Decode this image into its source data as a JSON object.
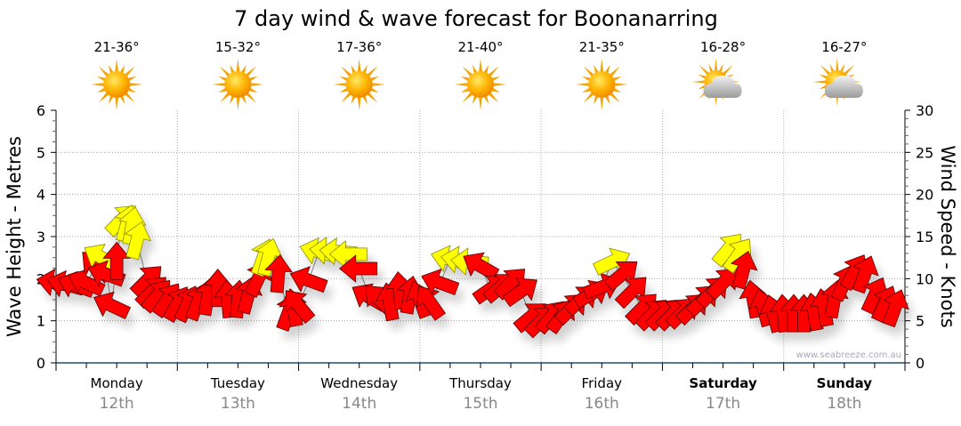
{
  "chart_data": {
    "type": "scatter",
    "title": "7 day wind & wave forecast for Boonanarring",
    "ylabel_left": "Wave Height - Metres",
    "ylabel_right": "Wind Speed - Knots",
    "ylim_left": [
      0,
      6
    ],
    "ylim_right": [
      0,
      30
    ],
    "left_ticks": [
      "0",
      "1",
      "2",
      "3",
      "4",
      "5",
      "6"
    ],
    "right_ticks": [
      "0",
      "5",
      "10",
      "15",
      "20",
      "25",
      "30"
    ],
    "grid": true,
    "watermark": "www.seabreeze.com.au",
    "days": [
      {
        "name": "Monday",
        "date": "12th",
        "temp": "21-36°",
        "icon": "sunny-icon",
        "bold": false
      },
      {
        "name": "Tuesday",
        "date": "13th",
        "temp": "15-32°",
        "icon": "sunny-icon",
        "bold": false
      },
      {
        "name": "Wednesday",
        "date": "14th",
        "temp": "17-36°",
        "icon": "sunny-icon",
        "bold": false
      },
      {
        "name": "Thursday",
        "date": "15th",
        "temp": "21-40°",
        "icon": "sunny-icon",
        "bold": false
      },
      {
        "name": "Friday",
        "date": "16th",
        "temp": "21-35°",
        "icon": "sunny-icon",
        "bold": false
      },
      {
        "name": "Saturday",
        "date": "17th",
        "temp": "16-28°",
        "icon": "partly-cloudy-icon",
        "bold": true
      },
      {
        "name": "Sunday",
        "date": "18th",
        "temp": "16-27°",
        "icon": "partly-cloudy-icon",
        "bold": true
      }
    ],
    "colors": {
      "r": "#ff0000",
      "y": "#ffff00",
      "axis": "#1f4e79",
      "date": "#888888"
    },
    "wind_series": {
      "fields": [
        "hour",
        "knots",
        "direction_deg",
        "color"
      ],
      "points": [
        [
          0,
          9.5,
          -80,
          "r"
        ],
        [
          2,
          9.3,
          -75,
          "r"
        ],
        [
          4,
          9.2,
          -70,
          "r"
        ],
        [
          6,
          9.5,
          -65,
          "r"
        ],
        [
          8,
          11.5,
          -45,
          "r"
        ],
        [
          9,
          12.5,
          -60,
          "y"
        ],
        [
          10,
          10.5,
          -70,
          "r"
        ],
        [
          11,
          6.8,
          -65,
          "r"
        ],
        [
          12,
          12.0,
          0,
          "r"
        ],
        [
          13,
          17,
          45,
          "y"
        ],
        [
          14,
          16.5,
          15,
          "y"
        ],
        [
          15,
          16.2,
          10,
          "y"
        ],
        [
          16,
          14.5,
          15,
          "y"
        ],
        [
          18,
          9.8,
          45,
          "r"
        ],
        [
          19,
          8.5,
          45,
          "r"
        ],
        [
          20,
          8.0,
          40,
          "r"
        ],
        [
          22,
          7.5,
          35,
          "r"
        ],
        [
          24,
          7.0,
          30,
          "r"
        ],
        [
          26,
          7.0,
          25,
          "r"
        ],
        [
          28,
          7.2,
          20,
          "r"
        ],
        [
          30,
          7.8,
          10,
          "r"
        ],
        [
          32,
          8.8,
          0,
          "r"
        ],
        [
          34,
          7.5,
          -5,
          "r"
        ],
        [
          36,
          7.5,
          5,
          "r"
        ],
        [
          38,
          8.0,
          15,
          "r"
        ],
        [
          40,
          10.0,
          25,
          "r"
        ],
        [
          41,
          12.5,
          20,
          "y"
        ],
        [
          42,
          12.5,
          15,
          "y"
        ],
        [
          44,
          10.5,
          5,
          "r"
        ],
        [
          46,
          6.0,
          20,
          "r"
        ],
        [
          47,
          6.5,
          -10,
          "r"
        ],
        [
          48,
          6.8,
          -40,
          "r"
        ],
        [
          50,
          9.8,
          -70,
          "r"
        ],
        [
          52,
          13.2,
          -75,
          "y"
        ],
        [
          54,
          13.3,
          -85,
          "y"
        ],
        [
          56,
          13.2,
          -85,
          "y"
        ],
        [
          58,
          12.9,
          -90,
          "y"
        ],
        [
          60,
          11.2,
          -90,
          "r"
        ],
        [
          62,
          7.8,
          -60,
          "r"
        ],
        [
          64,
          7.5,
          -45,
          "r"
        ],
        [
          66,
          7.2,
          -10,
          "r"
        ],
        [
          68,
          8.5,
          -5,
          "r"
        ],
        [
          70,
          8.0,
          10,
          "r"
        ],
        [
          72,
          7.5,
          -20,
          "r"
        ],
        [
          74,
          7.2,
          -35,
          "r"
        ],
        [
          76,
          9.5,
          -70,
          "r"
        ],
        [
          78,
          12.3,
          -75,
          "y"
        ],
        [
          80,
          12.2,
          -80,
          "y"
        ],
        [
          82,
          12.0,
          -85,
          "y"
        ],
        [
          84,
          11.5,
          -60,
          "r"
        ],
        [
          86,
          8.8,
          55,
          "r"
        ],
        [
          88,
          9.0,
          50,
          "r"
        ],
        [
          90,
          9.5,
          45,
          "r"
        ],
        [
          92,
          8.5,
          55,
          "r"
        ],
        [
          94,
          5.5,
          50,
          "r"
        ],
        [
          96,
          5.0,
          45,
          "r"
        ],
        [
          98,
          5.5,
          40,
          "r"
        ],
        [
          100,
          5.6,
          35,
          "r"
        ],
        [
          102,
          6.5,
          45,
          "r"
        ],
        [
          104,
          7.5,
          50,
          "r"
        ],
        [
          106,
          8.2,
          60,
          "r"
        ],
        [
          108,
          9.0,
          70,
          "r"
        ],
        [
          110,
          12.0,
          65,
          "y"
        ],
        [
          112,
          10.5,
          50,
          "r"
        ],
        [
          114,
          8.5,
          45,
          "r"
        ],
        [
          116,
          6.5,
          45,
          "r"
        ],
        [
          118,
          5.8,
          45,
          "r"
        ],
        [
          120,
          5.8,
          45,
          "r"
        ],
        [
          122,
          5.8,
          45,
          "r"
        ],
        [
          124,
          6.0,
          45,
          "r"
        ],
        [
          126,
          6.5,
          45,
          "r"
        ],
        [
          128,
          7.5,
          45,
          "r"
        ],
        [
          130,
          8.5,
          45,
          "r"
        ],
        [
          132,
          9.5,
          45,
          "r"
        ],
        [
          133,
          13.5,
          40,
          "y"
        ],
        [
          135,
          12.8,
          35,
          "y"
        ],
        [
          136,
          11.0,
          15,
          "r"
        ],
        [
          138,
          7.5,
          -10,
          "r"
        ],
        [
          140,
          6.5,
          -15,
          "r"
        ],
        [
          142,
          5.8,
          -15,
          "r"
        ],
        [
          144,
          5.8,
          -5,
          "r"
        ],
        [
          146,
          5.8,
          0,
          "r"
        ],
        [
          148,
          5.8,
          0,
          "r"
        ],
        [
          150,
          6.0,
          -10,
          "r"
        ],
        [
          152,
          6.5,
          -10,
          "r"
        ],
        [
          154,
          7.5,
          10,
          "r"
        ],
        [
          156,
          9.5,
          25,
          "r"
        ],
        [
          158,
          10.8,
          30,
          "r"
        ],
        [
          160,
          10.5,
          20,
          "r"
        ],
        [
          162,
          8.0,
          25,
          "r"
        ],
        [
          164,
          7.0,
          25,
          "r"
        ],
        [
          166,
          6.5,
          20,
          "r"
        ]
      ]
    }
  }
}
